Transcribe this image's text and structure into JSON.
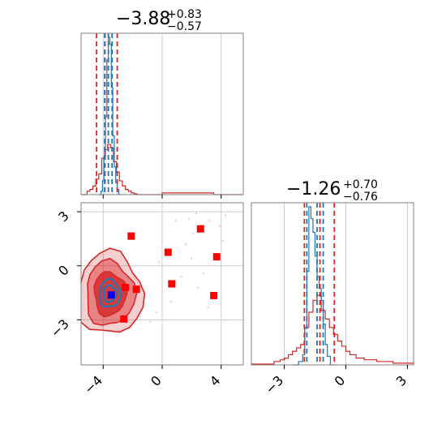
{
  "colors": {
    "primary": "#d62728",
    "secondary": "#1f77b4",
    "grid": "#cccccc",
    "scatter_light": "#f4c7d2",
    "marker": "#ff0000",
    "truth_marker": "#0000ff"
  },
  "chart_data": [
    {
      "type": "histogram",
      "panel": "marginal-x",
      "title": {
        "value": "−3.88",
        "plus": "+0.83",
        "minus": "−0.57"
      },
      "xlim": [
        -5.5,
        5.5
      ],
      "quantiles": {
        "red": [
          -4.45,
          -3.88,
          -3.05
        ],
        "blue": [
          -3.9,
          -3.65,
          -3.4
        ]
      },
      "series": [
        {
          "color": "red",
          "bins": [
            -5.5,
            -5.1,
            -4.9,
            -4.7,
            -4.5,
            -4.3,
            -4.1,
            -3.9,
            -3.7,
            -3.5,
            -3.3,
            -3.1,
            -2.9,
            -2.7,
            -2.5,
            -2.3,
            -2.1,
            -1.9,
            -1.7,
            0.0,
            3.5,
            5.5
          ],
          "counts": [
            0,
            0.02,
            0.03,
            0.05,
            0.09,
            0.12,
            0.21,
            0.26,
            0.29,
            0.27,
            0.19,
            0.13,
            0.08,
            0.05,
            0.03,
            0.02,
            0.01,
            0.005,
            0.0,
            0.01,
            0.0
          ]
        },
        {
          "color": "blue",
          "bins": [
            -4.3,
            -4.15,
            -4.05,
            -3.95,
            -3.85,
            -3.75,
            -3.65,
            -3.55,
            -3.45,
            -3.35,
            -3.25,
            -3.15,
            -3.05,
            -2.95,
            -2.85
          ],
          "counts": [
            0.0,
            0.02,
            0.08,
            0.22,
            0.45,
            0.78,
            0.91,
            0.87,
            0.62,
            0.34,
            0.16,
            0.07,
            0.03,
            0.0
          ]
        }
      ]
    },
    {
      "type": "scatter",
      "panel": "joint",
      "xlim": [
        -5.5,
        5.5
      ],
      "ylim": [
        -5.5,
        3.5
      ],
      "xticks": [
        "−4",
        "0",
        "4"
      ],
      "yticks": [
        "3",
        "0",
        "−3"
      ],
      "markers": [
        {
          "x": -2.1,
          "y": 1.65
        },
        {
          "x": 2.6,
          "y": 2.05
        },
        {
          "x": 0.4,
          "y": 0.75
        },
        {
          "x": 3.7,
          "y": 0.5
        },
        {
          "x": -1.75,
          "y": -1.3
        },
        {
          "x": 0.65,
          "y": -1.0
        },
        {
          "x": 3.5,
          "y": -1.65
        },
        {
          "x": -2.5,
          "y": -1.2
        },
        {
          "x": -2.6,
          "y": -2.95
        }
      ],
      "truth_marker": {
        "x": -3.45,
        "y": -1.62
      },
      "scatter": [
        {
          "x": 1.8,
          "y": 2.6
        },
        {
          "x": 2.3,
          "y": 2.9
        },
        {
          "x": 3.2,
          "y": 2.5
        },
        {
          "x": 3.9,
          "y": 2.2
        },
        {
          "x": 4.3,
          "y": 2.8
        },
        {
          "x": 1.6,
          "y": 1.2
        },
        {
          "x": 2.0,
          "y": 0.4
        },
        {
          "x": 2.8,
          "y": -0.4
        },
        {
          "x": 1.3,
          "y": -0.6
        },
        {
          "x": -0.4,
          "y": -2.6
        },
        {
          "x": -0.8,
          "y": -3.1
        },
        {
          "x": -2.1,
          "y": -3.4
        },
        {
          "x": -3.0,
          "y": -3.6
        },
        {
          "x": 2.1,
          "y": 1.8
        },
        {
          "x": 0.9,
          "y": 2.5
        },
        {
          "x": -0.2,
          "y": 0.2
        },
        {
          "x": 4.1,
          "y": 1.4
        },
        {
          "x": 2.4,
          "y": -1.2
        },
        {
          "x": 3.1,
          "y": -2.3
        },
        {
          "x": 4.2,
          "y": -3.0
        },
        {
          "x": -1.5,
          "y": -2.8
        },
        {
          "x": 0.6,
          "y": -2.0
        }
      ]
    },
    {
      "type": "histogram",
      "panel": "marginal-y",
      "title": {
        "value": "−1.26",
        "plus": "+0.70",
        "minus": "−0.76"
      },
      "xlim": [
        -4.6,
        3.3
      ],
      "xticks": [
        "−3",
        "0",
        "3"
      ],
      "quantiles": {
        "red": [
          -2.02,
          -1.26,
          -0.56
        ],
        "blue": [
          -1.9,
          -1.4,
          -1.1
        ]
      },
      "series": [
        {
          "color": "red",
          "bins": [
            -4.6,
            -3.5,
            -3.2,
            -3.0,
            -2.8,
            -2.6,
            -2.4,
            -2.2,
            -2.0,
            -1.8,
            -1.6,
            -1.4,
            -1.2,
            -1.0,
            -0.8,
            -0.6,
            -0.4,
            -0.2,
            0.0,
            0.2,
            0.5,
            0.9,
            1.5,
            2.3,
            3.3
          ],
          "counts": [
            0.005,
            0.02,
            0.03,
            0.04,
            0.06,
            0.08,
            0.1,
            0.12,
            0.22,
            0.31,
            0.38,
            0.41,
            0.32,
            0.27,
            0.22,
            0.18,
            0.14,
            0.11,
            0.08,
            0.06,
            0.04,
            0.03,
            0.02,
            0.01
          ]
        },
        {
          "color": "blue",
          "bins": [
            -2.6,
            -2.3,
            -2.1,
            -2.0,
            -1.9,
            -1.8,
            -1.7,
            -1.6,
            -1.5,
            -1.4,
            -1.3,
            -1.2,
            -1.1,
            -1.0,
            -0.9,
            -0.75,
            -0.5
          ],
          "counts": [
            0.0,
            0.02,
            0.06,
            0.22,
            0.55,
            0.93,
            0.86,
            0.78,
            0.64,
            0.52,
            0.45,
            0.38,
            0.24,
            0.12,
            0.05,
            0.0
          ]
        }
      ]
    }
  ]
}
